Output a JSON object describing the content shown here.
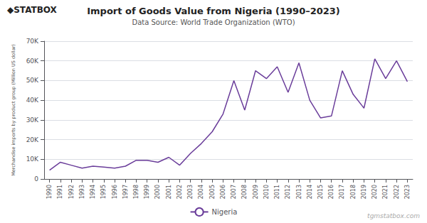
{
  "chart_data": {
    "type": "line",
    "title": "Import of Goods Value from Nigeria (1990–2023)",
    "subtitle": "Data Source: World Trade Organization (WTO)",
    "ylabel": "Merchandise imports by product group (Million US dollar)",
    "annotations": [
      "◆STATBOX",
      "tgmstatbox.com"
    ],
    "x": [
      1990,
      1991,
      1992,
      1993,
      1994,
      1995,
      1996,
      1997,
      1998,
      1999,
      2000,
      2001,
      2002,
      2003,
      2004,
      2005,
      2006,
      2007,
      2008,
      2009,
      2010,
      2011,
      2012,
      2013,
      2014,
      2015,
      2016,
      2017,
      2018,
      2019,
      2020,
      2021,
      2022,
      2023
    ],
    "series": [
      {
        "name": "Nigeria",
        "color": "#6a3d9a",
        "values": [
          4500,
          8500,
          7000,
          5500,
          6500,
          6000,
          5500,
          6500,
          9500,
          9500,
          8500,
          11000,
          7000,
          13000,
          18000,
          24000,
          33000,
          50000,
          35000,
          55000,
          51000,
          57000,
          44000,
          59000,
          40000,
          31000,
          32000,
          55000,
          43000,
          36000,
          61000,
          51000,
          60000,
          49500
        ]
      }
    ],
    "xlim": [
      1989.5,
      2023.5
    ],
    "xticks": [
      1990,
      1991,
      1992,
      1993,
      1994,
      1995,
      1996,
      1997,
      1998,
      1999,
      2000,
      2001,
      2002,
      2003,
      2004,
      2005,
      2006,
      2007,
      2008,
      2009,
      2010,
      2011,
      2012,
      2013,
      2014,
      2015,
      2016,
      2017,
      2018,
      2019,
      2020,
      2021,
      2022,
      2023
    ],
    "ylim": [
      0,
      70000
    ],
    "yticks": [
      0,
      {
        "value": 10000,
        "label": "10K"
      },
      {
        "value": 20000,
        "label": "20K"
      },
      {
        "value": 30000,
        "label": "30K"
      },
      {
        "value": 40000,
        "label": "40K"
      },
      {
        "value": 50000,
        "label": "50K"
      },
      {
        "value": 60000,
        "label": "60K"
      },
      {
        "value": 70000,
        "label": "70K"
      }
    ],
    "grid": true,
    "legend": "bottom"
  }
}
